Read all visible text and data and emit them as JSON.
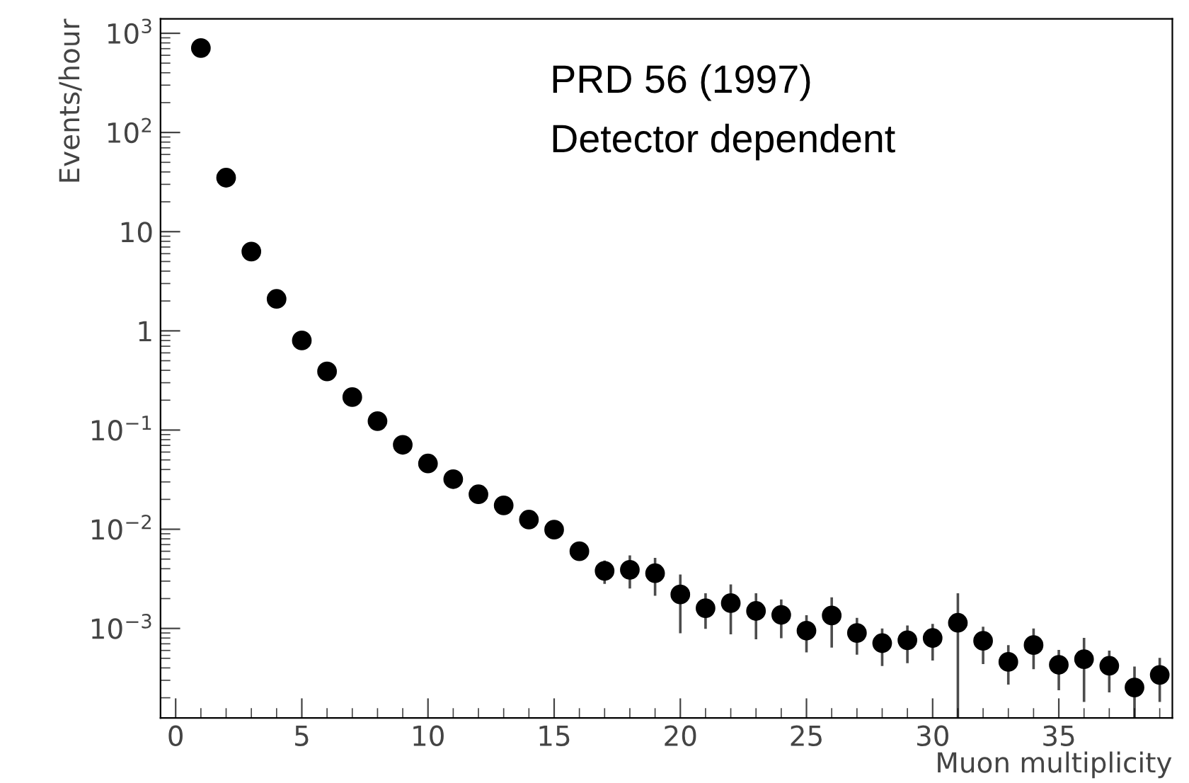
{
  "chart_data": {
    "type": "scatter",
    "xlabel": "Muon multiplicity",
    "ylabel": "Events/hour",
    "annotations": [
      "PRD 56 (1997)",
      "Detector dependent"
    ],
    "x": [
      1,
      2,
      3,
      4,
      5,
      6,
      7,
      8,
      9,
      10,
      11,
      12,
      13,
      14,
      15,
      16,
      17,
      18,
      19,
      20,
      21,
      22,
      23,
      24,
      25,
      26,
      27,
      28,
      29,
      30,
      31,
      32,
      33,
      34,
      35,
      36,
      37,
      38,
      39
    ],
    "series": [
      {
        "color": "#000000",
        "values": [
          710,
          35,
          6.3,
          2.1,
          0.8,
          0.39,
          0.215,
          0.123,
          0.071,
          0.046,
          0.032,
          0.0225,
          0.0174,
          0.0125,
          0.0099,
          0.006,
          0.0038,
          0.0039,
          0.0036,
          0.0022,
          0.0016,
          0.0018,
          0.0015,
          0.00137,
          0.00095,
          0.00135,
          0.0009,
          0.00071,
          0.00076,
          0.0008,
          0.00114,
          0.00075,
          0.00046,
          0.00068,
          0.00043,
          0.00049,
          0.00042,
          0.000254,
          0.00034
        ],
        "errors": [
          null,
          null,
          null,
          null,
          null,
          null,
          null,
          null,
          null,
          null,
          null,
          null,
          null,
          null,
          null,
          null,
          [
            0.0029,
            0.0047
          ],
          [
            0.0026,
            0.0053
          ],
          [
            0.0022,
            0.005
          ],
          [
            0.00092,
            0.0034
          ],
          [
            0.00102,
            0.0022
          ],
          [
            0.0009,
            0.0027
          ],
          [
            0.0008,
            0.0022
          ],
          [
            0.00082,
            0.0019
          ],
          [
            0.00059,
            0.00132
          ],
          [
            0.00066,
            0.002
          ],
          [
            0.00056,
            0.00124
          ],
          [
            0.00043,
            0.00097
          ],
          [
            0.00046,
            0.00104
          ],
          [
            0.00049,
            0.00108
          ],
          [
            0.00013,
            0.0022
          ],
          [
            0.00045,
            0.00101
          ],
          [
            0.00028,
            0.00066
          ],
          [
            0.0004,
            0.00097
          ],
          [
            0.000245,
            0.00059
          ],
          [
            0.000187,
            0.00078
          ],
          [
            0.000233,
            0.00058
          ],
          [
            0.00013,
            0.0004
          ],
          [
            0.000187,
            0.00049
          ]
        ]
      }
    ],
    "marker": "circle",
    "log": "y",
    "grid": false,
    "xlim": [
      -0.6,
      39.5
    ],
    "xticks": [
      0,
      5,
      10,
      15,
      20,
      25,
      30,
      35
    ],
    "ylim": [
      0.000125,
      1400
    ],
    "yticks": [
      {
        "value": 1000,
        "label": "10$^{3}$"
      },
      {
        "value": 100,
        "label": "10$^{2}$"
      },
      10,
      1,
      {
        "value": 0.1,
        "label": "10$^{−1}$"
      },
      {
        "value": 0.01,
        "label": "10$^{−2}$"
      },
      {
        "value": 0.001,
        "label": "10$^{−3}$"
      }
    ]
  }
}
